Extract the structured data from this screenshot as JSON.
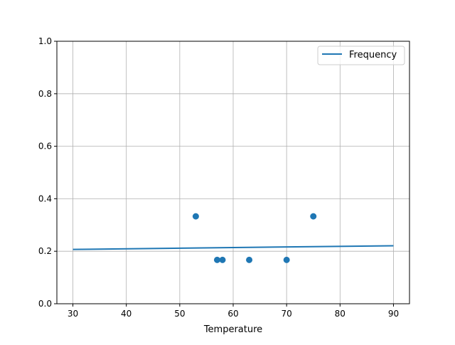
{
  "chart_data": {
    "type": "scatter",
    "title": "",
    "xlabel": "Temperature",
    "ylabel": "",
    "xlim": [
      27,
      93
    ],
    "ylim": [
      0,
      1.0
    ],
    "grid": true,
    "legend_placement": "top-right",
    "xticks": [
      "30",
      "40",
      "50",
      "60",
      "70",
      "80",
      "90"
    ],
    "yticks": [
      "0.0",
      "0.2",
      "0.4",
      "0.6",
      "0.8",
      "1.0"
    ],
    "color": "#1f77b4",
    "scatter": {
      "x": [
        53,
        57,
        58,
        63,
        70,
        75
      ],
      "y": [
        0.333,
        0.167,
        0.167,
        0.167,
        0.167,
        0.333
      ]
    },
    "series": [
      {
        "name": "Frequency",
        "type": "line",
        "x": [
          30,
          90
        ],
        "y": [
          0.207,
          0.221
        ]
      }
    ]
  }
}
